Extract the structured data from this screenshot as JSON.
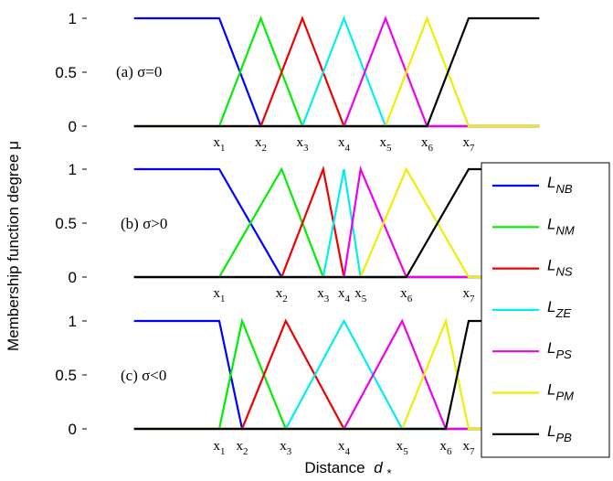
{
  "chart_data": {
    "type": "line",
    "ylabel": "Membership function degree μ",
    "xlabel": "Distance",
    "xlabel_symbol": "d",
    "xlabel_sub": "*",
    "yticks": [
      "0",
      "0.5",
      "1"
    ],
    "ylim": [
      0,
      1
    ],
    "legend": {
      "placement": "right",
      "entries": [
        {
          "base": "L",
          "sub": "NB",
          "color": "#0000ff"
        },
        {
          "base": "L",
          "sub": "NM",
          "color": "#00ee00"
        },
        {
          "base": "L",
          "sub": "NS",
          "color": "#ee0000"
        },
        {
          "base": "L",
          "sub": "ZE",
          "color": "#00eeee"
        },
        {
          "base": "L",
          "sub": "PS",
          "color": "#ee00ee"
        },
        {
          "base": "L",
          "sub": "PM",
          "color": "#eeee00"
        },
        {
          "base": "L",
          "sub": "PB",
          "color": "#000000"
        }
      ]
    },
    "panels": [
      {
        "annotation": "(a) σ=0",
        "x_labels": [
          {
            "base": "x",
            "sub": "1",
            "at": 1
          },
          {
            "base": "x",
            "sub": "2",
            "at": 2
          },
          {
            "base": "x",
            "sub": "3",
            "at": 3
          },
          {
            "base": "x",
            "sub": "4",
            "at": 4
          },
          {
            "base": "x",
            "sub": "5",
            "at": 5
          },
          {
            "base": "x",
            "sub": "6",
            "at": 6
          },
          {
            "base": "x",
            "sub": "7",
            "at": 7
          }
        ],
        "series": [
          {
            "x": [
              -1.05,
              1,
              2,
              8.7
            ],
            "y": [
              1,
              1,
              0,
              0
            ]
          },
          {
            "x": [
              -1.05,
              1,
              2,
              3,
              8.7
            ],
            "y": [
              0,
              0,
              1,
              0,
              0
            ]
          },
          {
            "x": [
              -1.05,
              2,
              3,
              4,
              8.7
            ],
            "y": [
              0,
              0,
              1,
              0,
              0
            ]
          },
          {
            "x": [
              -1.05,
              3,
              4,
              5,
              8.7
            ],
            "y": [
              0,
              0,
              1,
              0,
              0
            ]
          },
          {
            "x": [
              -1.05,
              4,
              5,
              6,
              8.7
            ],
            "y": [
              0,
              0,
              1,
              0,
              0
            ]
          },
          {
            "x": [
              -1.05,
              5,
              6,
              7,
              8.7
            ],
            "y": [
              0,
              0,
              1,
              0,
              0
            ]
          },
          {
            "x": [
              -1.05,
              6,
              7,
              8.7
            ],
            "y": [
              0,
              0,
              1,
              1
            ]
          }
        ]
      },
      {
        "annotation": "(b) σ>0",
        "x_labels": [
          {
            "base": "x",
            "sub": "1",
            "at": 1
          },
          {
            "base": "x",
            "sub": "2",
            "at": 2.5
          },
          {
            "base": "x",
            "sub": "3",
            "at": 3.5
          },
          {
            "base": "x",
            "sub": "4",
            "at": 4
          },
          {
            "base": "x",
            "sub": "5",
            "at": 4.4
          },
          {
            "base": "x",
            "sub": "6",
            "at": 5.5
          },
          {
            "base": "x",
            "sub": "7",
            "at": 7
          }
        ],
        "series": [
          {
            "x": [
              -1.05,
              1,
              2.5,
              8.7
            ],
            "y": [
              1,
              1,
              0,
              0
            ]
          },
          {
            "x": [
              -1.05,
              1,
              2.5,
              3.5,
              8.7
            ],
            "y": [
              0,
              0,
              1,
              0,
              0
            ]
          },
          {
            "x": [
              -1.05,
              2.5,
              3.5,
              4,
              8.7
            ],
            "y": [
              0,
              0,
              1,
              0,
              0
            ]
          },
          {
            "x": [
              -1.05,
              3.5,
              4,
              4.4,
              8.7
            ],
            "y": [
              0,
              0,
              1,
              0,
              0
            ]
          },
          {
            "x": [
              -1.05,
              4,
              4.4,
              5.5,
              8.7
            ],
            "y": [
              0,
              0,
              1,
              0,
              0
            ]
          },
          {
            "x": [
              -1.05,
              4.4,
              5.5,
              7,
              8.7
            ],
            "y": [
              0,
              0,
              1,
              0,
              0
            ]
          },
          {
            "x": [
              -1.05,
              5.5,
              7,
              8.7
            ],
            "y": [
              0,
              0,
              1,
              1
            ]
          }
        ]
      },
      {
        "annotation": "(c) σ<0",
        "x_labels": [
          {
            "base": "x",
            "sub": "1",
            "at": 1
          },
          {
            "base": "x",
            "sub": "2",
            "at": 1.55
          },
          {
            "base": "x",
            "sub": "3",
            "at": 2.6
          },
          {
            "base": "x",
            "sub": "4",
            "at": 4
          },
          {
            "base": "x",
            "sub": "5",
            "at": 5.4
          },
          {
            "base": "x",
            "sub": "6",
            "at": 6.45
          },
          {
            "base": "x",
            "sub": "7",
            "at": 7
          }
        ],
        "series": [
          {
            "x": [
              -1.05,
              1,
              1.55,
              8.7
            ],
            "y": [
              1,
              1,
              0,
              0
            ]
          },
          {
            "x": [
              -1.05,
              1,
              1.55,
              2.6,
              8.7
            ],
            "y": [
              0,
              0,
              1,
              0,
              0
            ]
          },
          {
            "x": [
              -1.05,
              1.55,
              2.6,
              4,
              8.7
            ],
            "y": [
              0,
              0,
              1,
              0,
              0
            ]
          },
          {
            "x": [
              -1.05,
              2.6,
              4,
              5.4,
              8.7
            ],
            "y": [
              0,
              0,
              1,
              0,
              0
            ]
          },
          {
            "x": [
              -1.05,
              4,
              5.4,
              6.45,
              8.7
            ],
            "y": [
              0,
              0,
              1,
              0,
              0
            ]
          },
          {
            "x": [
              -1.05,
              5.4,
              6.45,
              7,
              8.7
            ],
            "y": [
              0,
              0,
              1,
              0,
              0
            ]
          },
          {
            "x": [
              -1.05,
              6.45,
              7,
              8.7
            ],
            "y": [
              0,
              0,
              1,
              1
            ]
          }
        ]
      }
    ]
  }
}
